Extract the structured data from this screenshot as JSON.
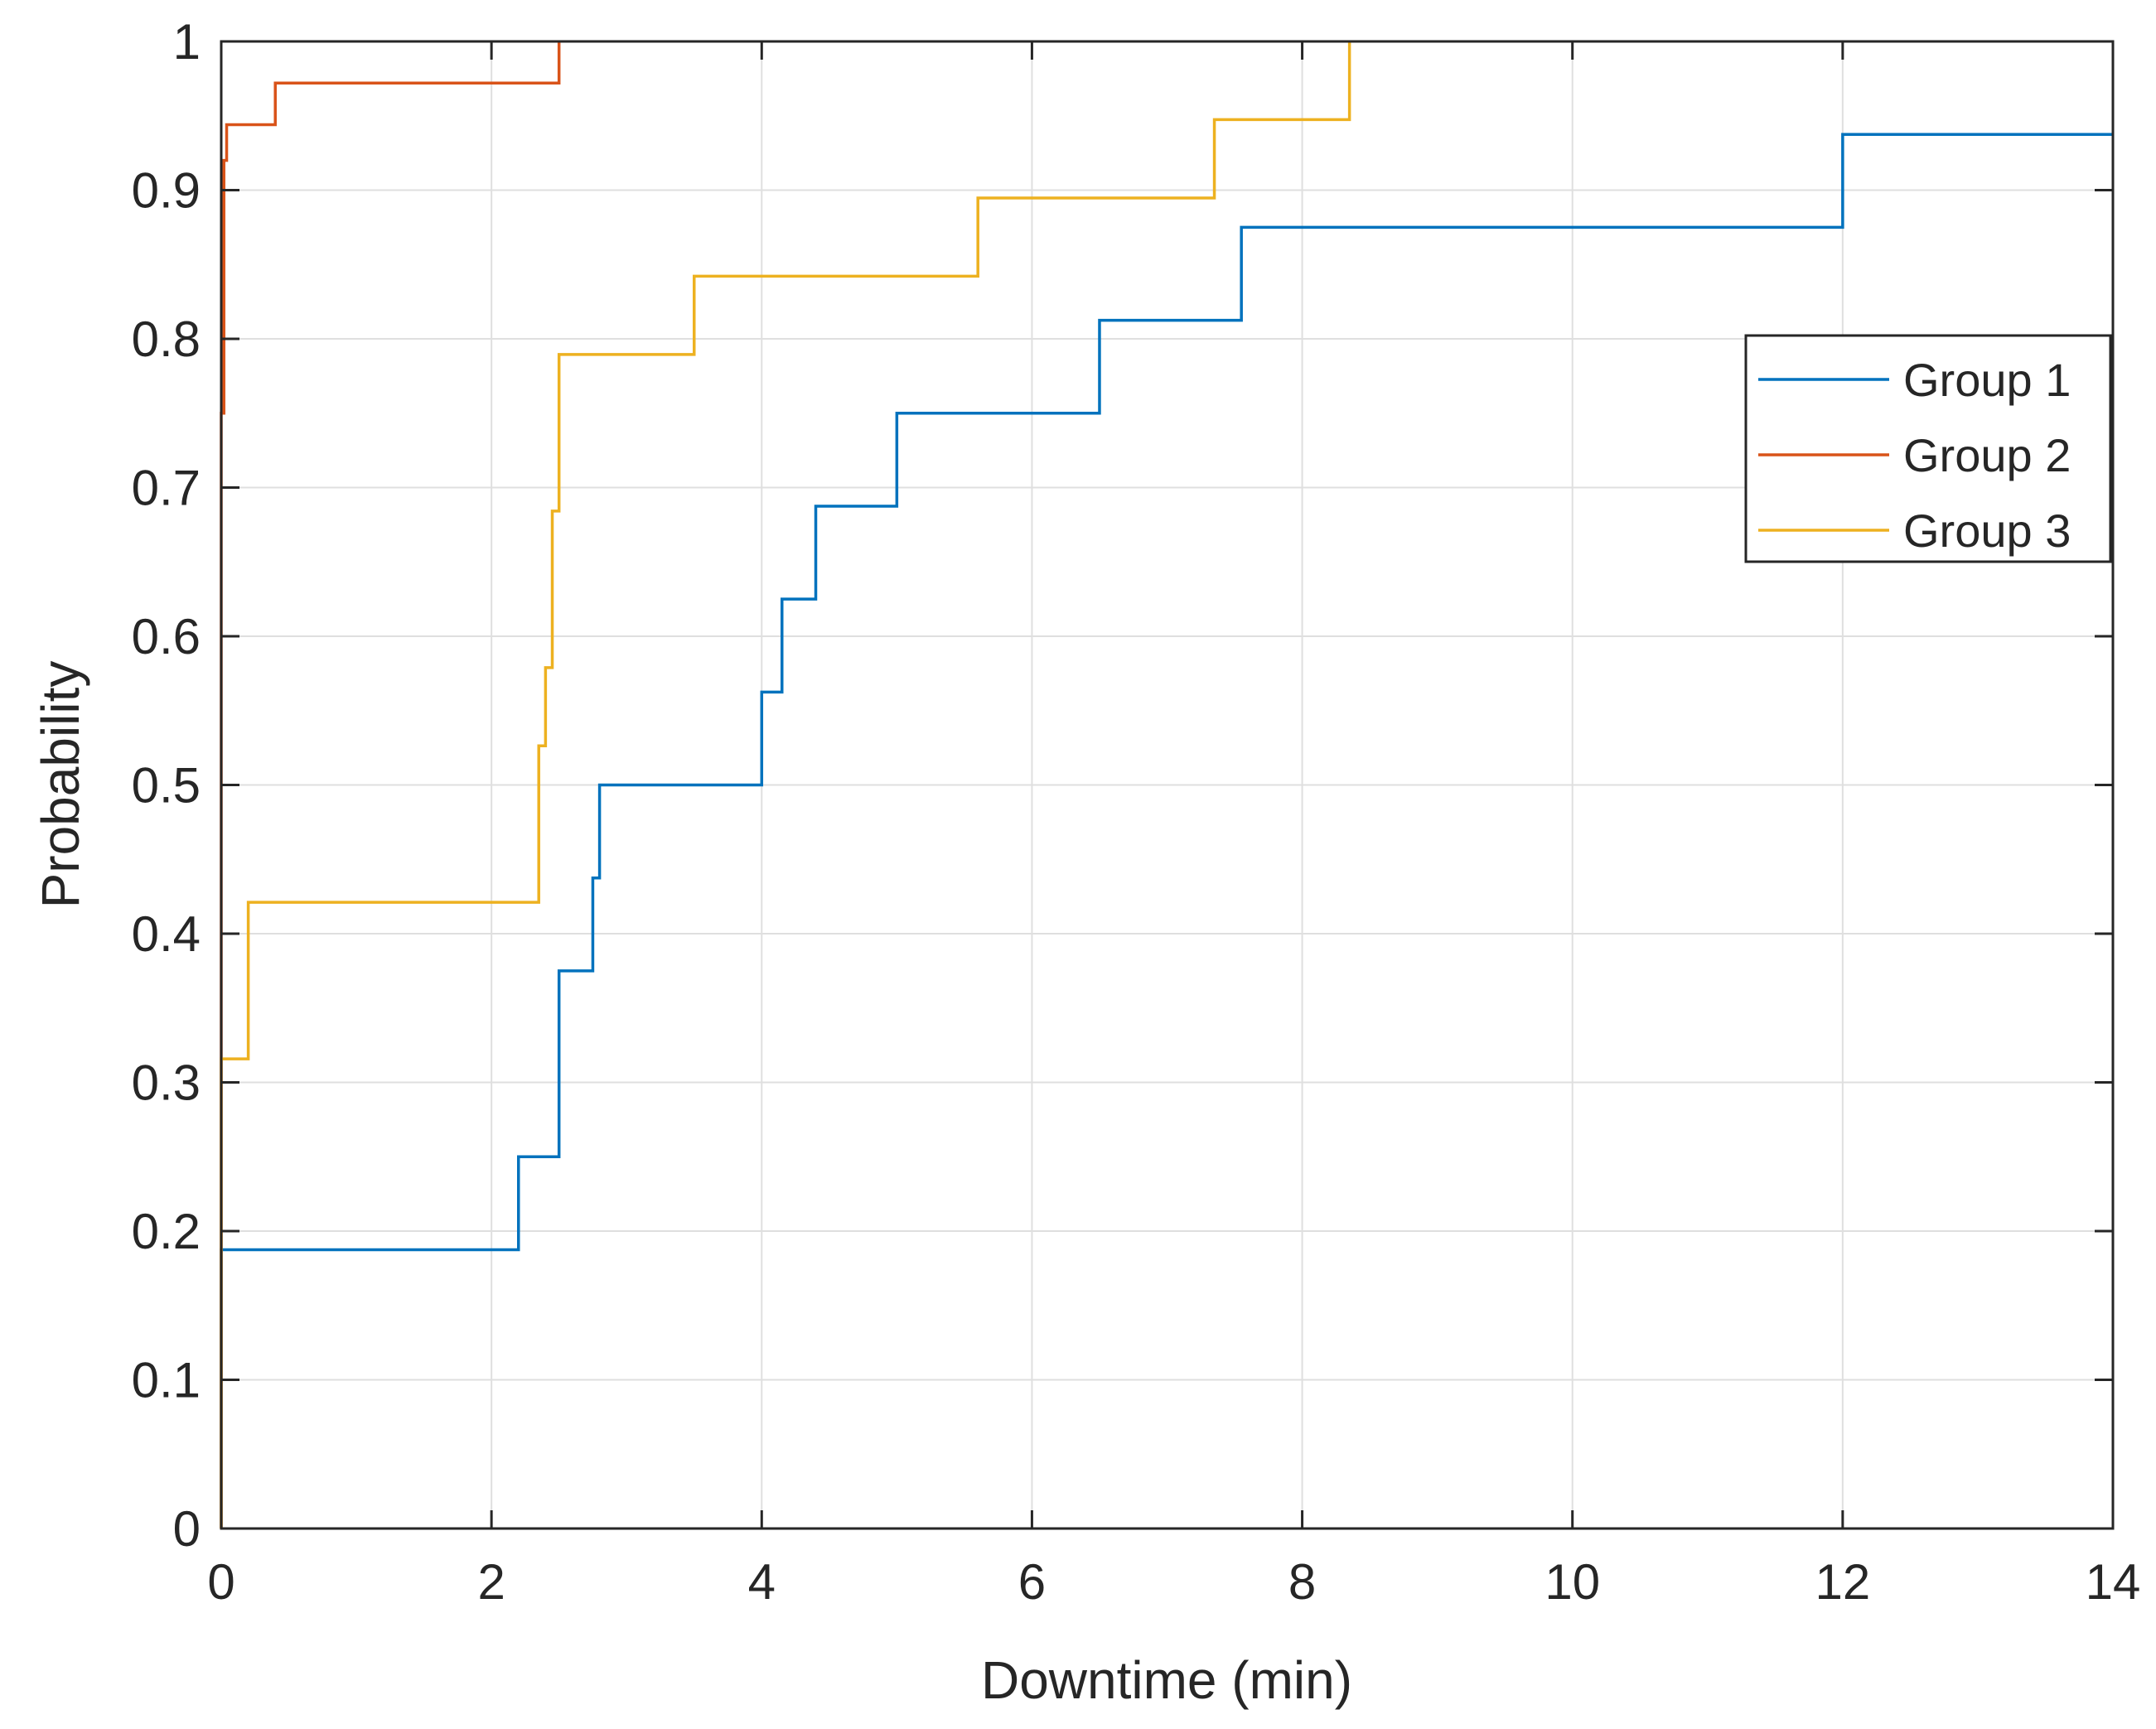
{
  "chart_data": {
    "type": "line",
    "step": true,
    "title": "",
    "xlabel": "Downtime (min)",
    "ylabel": "Probability",
    "xlim": [
      0,
      14
    ],
    "ylim": [
      0,
      1
    ],
    "xticks": [
      0,
      2,
      4,
      6,
      8,
      10,
      12,
      14
    ],
    "xtick_labels": [
      "0",
      "2",
      "4",
      "6",
      "8",
      "10",
      "12",
      "14"
    ],
    "yticks": [
      0,
      0.1,
      0.2,
      0.3,
      0.4,
      0.5,
      0.6,
      0.7,
      0.8,
      0.9,
      1
    ],
    "ytick_labels": [
      "0",
      "0.1",
      "0.2",
      "0.3",
      "0.4",
      "0.5",
      "0.6",
      "0.7",
      "0.8",
      "0.9",
      "1"
    ],
    "grid": true,
    "legend_position": "top-right",
    "series": [
      {
        "name": "Group 1",
        "color": "#0072BD",
        "x": [
          0,
          0,
          2.2,
          2.5,
          2.75,
          2.8,
          4.0,
          4.15,
          4.4,
          5.0,
          6.5,
          7.55,
          12.0,
          14.0
        ],
        "y": [
          0,
          0.1875,
          0.25,
          0.375,
          0.4375,
          0.5,
          0.5625,
          0.625,
          0.6875,
          0.75,
          0.8125,
          0.875,
          0.9375,
          0.9375
        ]
      },
      {
        "name": "Group 2",
        "color": "#D95319",
        "x": [
          0,
          0,
          0.02,
          0.04,
          0.4,
          2.5
        ],
        "y": [
          0,
          0.75,
          0.92,
          0.944,
          0.972,
          1.0
        ]
      },
      {
        "name": "Group 3",
        "color": "#EDB120",
        "x": [
          0,
          0,
          0.2,
          2.35,
          2.4,
          2.45,
          2.5,
          3.5,
          5.6,
          7.35,
          8.35
        ],
        "y": [
          0,
          0.3158,
          0.4211,
          0.5263,
          0.5789,
          0.6842,
          0.7895,
          0.8421,
          0.8947,
          0.9474,
          1.0
        ]
      }
    ]
  }
}
